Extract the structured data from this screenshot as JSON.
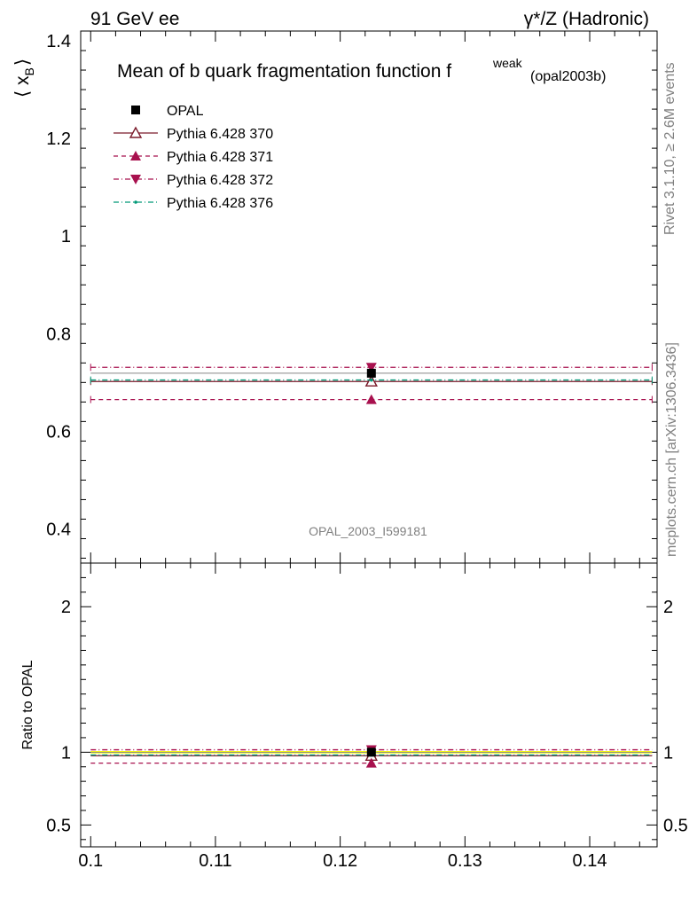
{
  "header": {
    "left": "91 GeV ee",
    "right": "γ*/Z (Hadronic)"
  },
  "side": {
    "rivet": "Rivet 3.1.10, ≥ 2.6M events",
    "mcplots": "mcplots.cern.ch [arXiv:1306.3436]"
  },
  "chart_data": {
    "type": "scatter",
    "title": "Mean of b quark fragmentation function f",
    "title_sup": "weak",
    "title_sub": "(opal2003b)",
    "annotation": "OPAL_2003_I599181",
    "ylabel_main": "⟨ x",
    "ylabel_main_sub": "B",
    "ylabel_main_close": "⟩",
    "ylabel_ratio": "Ratio to OPAL",
    "xlim": [
      0.0992,
      0.1454
    ],
    "ylim_main": [
      0.33,
      1.42
    ],
    "ylim_ratio": [
      0.35,
      2.3
    ],
    "x_ticks": [
      0.1,
      0.11,
      0.12,
      0.13,
      0.14
    ],
    "x_tick_labels": [
      "0.1",
      "0.11",
      "0.12",
      "0.13",
      "0.14"
    ],
    "y_ticks_main": [
      0.4,
      0.6,
      0.8,
      1,
      1.2,
      1.4
    ],
    "y_tick_labels_main": [
      "0.4",
      "0.6",
      "0.8",
      "1",
      "1.2",
      "1.4"
    ],
    "y_ticks_ratio": [
      0.5,
      1,
      2
    ],
    "y_tick_labels_ratio": [
      "0.5",
      "1",
      "2"
    ],
    "bin": {
      "low": 0.1,
      "high": 0.145,
      "center": 0.1225
    },
    "legend_position": "top-left",
    "series": [
      {
        "name": "OPAL",
        "value": 0.719,
        "ratio": 1.0,
        "color": "#000000",
        "marker": "square",
        "style": "none"
      },
      {
        "name": "Pythia 6.428 370",
        "value": 0.702,
        "ratio": 0.976,
        "color": "#7a1a2a",
        "marker": "triangle-up-open",
        "style": "solid"
      },
      {
        "name": "Pythia 6.428 371",
        "value": 0.665,
        "ratio": 0.925,
        "color": "#a8104e",
        "marker": "triangle-up",
        "style": "dashed"
      },
      {
        "name": "Pythia 6.428 372",
        "value": 0.731,
        "ratio": 1.017,
        "color": "#a8104e",
        "marker": "triangle-down",
        "style": "dashdot"
      },
      {
        "name": "Pythia 6.428 376",
        "value": 0.705,
        "ratio": 0.981,
        "color": "#009977",
        "marker": "dot",
        "style": "dashdot"
      }
    ],
    "ratio_band_color": "#ffff00"
  }
}
